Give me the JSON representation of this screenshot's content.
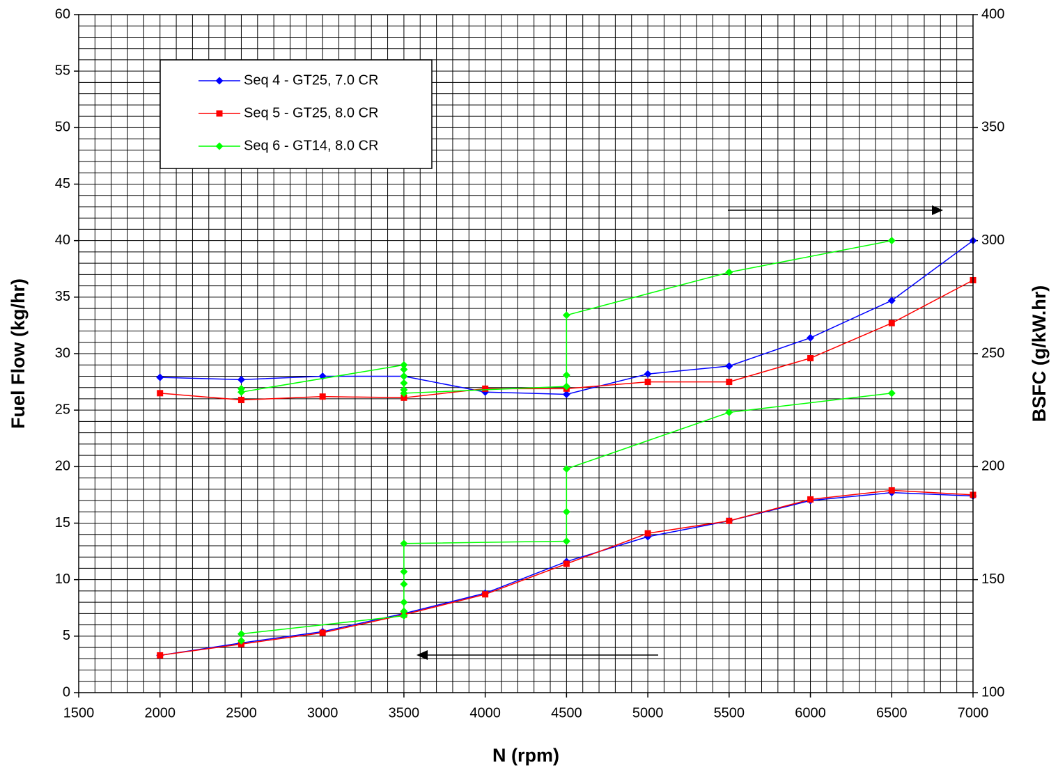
{
  "chart_data": {
    "type": "line",
    "x_label": "N (rpm)",
    "y_label": "Fuel Flow (kg/hr)",
    "y2_label": "BSFC (g/kW.hr)",
    "xlim": [
      1500,
      7000
    ],
    "xticks": [
      1500,
      2000,
      2500,
      3000,
      3500,
      4000,
      4500,
      5000,
      5500,
      6000,
      6500,
      7000
    ],
    "ylim": [
      0,
      60
    ],
    "yticks": [
      0,
      5,
      10,
      15,
      20,
      25,
      30,
      35,
      40,
      45,
      50,
      55,
      60
    ],
    "y2lim": [
      100,
      400
    ],
    "y2ticks": [
      100,
      150,
      200,
      250,
      300,
      350,
      400
    ],
    "grid": {
      "x_minor": 100,
      "y_minor": 1
    },
    "legend": "upper-left",
    "series": [
      {
        "name": "Seq 4 - GT25, 7.0 CR",
        "color": "#0000ff",
        "marker": "diamond",
        "x": [
          2000,
          2500,
          3000,
          3500,
          4000,
          4500,
          5000,
          5500,
          6000,
          6500,
          7000
        ],
        "values": [
          3.3,
          4.4,
          5.4,
          7.0,
          8.8,
          11.6,
          13.8,
          15.2,
          17.0,
          17.7,
          17.4
        ],
        "y2_values": [
          239.5,
          238.5,
          240,
          240,
          233,
          232,
          241,
          244.5,
          257,
          273.5,
          300
        ]
      },
      {
        "name": "Seq 5 - GT25, 8.0 CR",
        "color": "#ff0000",
        "marker": "square",
        "x": [
          2000,
          2500,
          3000,
          3500,
          4000,
          4500,
          5000,
          5500,
          6000,
          6500,
          7000
        ],
        "values": [
          3.3,
          4.3,
          5.3,
          6.9,
          8.7,
          11.4,
          14.1,
          15.2,
          17.1,
          17.9,
          17.5
        ],
        "y2_values": [
          232.5,
          229.5,
          231,
          230.5,
          234.5,
          234.5,
          237.5,
          237.5,
          248,
          263.5,
          282.5
        ]
      },
      {
        "name": "Seq 6 - GT14, 8.0 CR",
        "color": "#00ff00",
        "marker": "diamond",
        "x": [
          2500,
          2500,
          3500,
          3500,
          3500,
          3500,
          3500,
          3500,
          4500,
          4500,
          4500,
          5500,
          6500
        ],
        "values": [
          4.6,
          5.2,
          6.8,
          7.2,
          8.0,
          9.6,
          10.7,
          13.2,
          13.4,
          16.0,
          19.8,
          24.8,
          26.5
        ],
        "y2_values": [
          234.5,
          233,
          245,
          243,
          240,
          237,
          234,
          232.5,
          235.5,
          240.5,
          267,
          286,
          300
        ]
      }
    ]
  }
}
